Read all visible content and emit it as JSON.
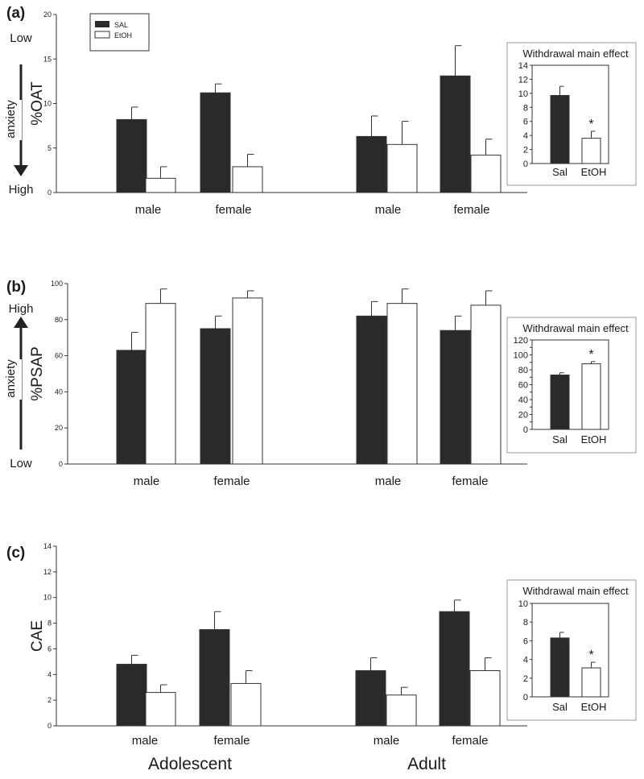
{
  "colors": {
    "sal": "#2a2a2a",
    "etoh": "#ffffff",
    "axis": "#333333"
  },
  "legend": {
    "sal_label": "SAL",
    "etoh_label": "EtOH"
  },
  "age_groups": [
    "Adolescent",
    "Adult"
  ],
  "chart_data": [
    {
      "type": "bar",
      "panel": "(a)",
      "ylabel": "%OAT",
      "ylim": [
        0,
        20
      ],
      "yticks": [
        0,
        5,
        10,
        15,
        20
      ],
      "arrow": {
        "direction": "down",
        "top_label": "Low",
        "bottom_label": "High",
        "text": "anxiety"
      },
      "groups": [
        "Adolescent",
        "Adult"
      ],
      "categories": [
        "male",
        "female",
        "male",
        "female"
      ],
      "series": [
        {
          "name": "SAL",
          "values": [
            8.2,
            11.2,
            6.3,
            13.1
          ],
          "errors": [
            1.4,
            1.0,
            2.3,
            3.4
          ]
        },
        {
          "name": "EtOH",
          "values": [
            1.6,
            2.9,
            5.4,
            4.2
          ],
          "errors": [
            1.3,
            1.4,
            2.6,
            1.8
          ]
        }
      ],
      "inset": {
        "title": "Withdrawal main effect",
        "categories": [
          "Sal",
          "EtOH"
        ],
        "values": [
          9.7,
          3.6
        ],
        "errors": [
          1.3,
          1.0
        ],
        "ylim": [
          0,
          14
        ],
        "yticks": [
          0,
          2,
          4,
          6,
          8,
          10,
          12,
          14
        ],
        "significance": "*"
      }
    },
    {
      "type": "bar",
      "panel": "(b)",
      "ylabel": "%PSAP",
      "ylim": [
        0,
        100
      ],
      "yticks": [
        0,
        20,
        40,
        60,
        80,
        100
      ],
      "arrow": {
        "direction": "up",
        "top_label": "High",
        "bottom_label": "Low",
        "text": "anxiety"
      },
      "groups": [
        "Adolescent",
        "Adult"
      ],
      "categories": [
        "male",
        "female",
        "male",
        "female"
      ],
      "series": [
        {
          "name": "SAL",
          "values": [
            63,
            75,
            82,
            74
          ],
          "errors": [
            10,
            7,
            8,
            8
          ]
        },
        {
          "name": "EtOH",
          "values": [
            89,
            92,
            89,
            88
          ],
          "errors": [
            8,
            4,
            8,
            8
          ]
        }
      ],
      "inset": {
        "title": "Withdrawal main effect",
        "categories": [
          "Sal",
          "EtOH"
        ],
        "values": [
          73,
          88
        ],
        "errors": [
          3,
          3
        ],
        "ylim": [
          0,
          120
        ],
        "yticks": [
          0,
          10,
          20,
          30,
          40,
          50,
          60,
          70,
          80,
          90,
          100,
          110,
          120
        ],
        "ytick_labels": [
          "0",
          "",
          "20",
          "",
          "40",
          "",
          "60",
          "",
          "80",
          "",
          "100",
          "",
          "120"
        ],
        "significance": "*"
      }
    },
    {
      "type": "bar",
      "panel": "(c)",
      "ylabel": "CAE",
      "ylim": [
        0,
        14
      ],
      "yticks": [
        0,
        2,
        4,
        6,
        8,
        10,
        12,
        14
      ],
      "groups": [
        "Adolescent",
        "Adult"
      ],
      "categories": [
        "male",
        "female",
        "male",
        "female"
      ],
      "series": [
        {
          "name": "SAL",
          "values": [
            4.8,
            7.5,
            4.3,
            8.9
          ],
          "errors": [
            0.7,
            1.4,
            1.0,
            0.9
          ]
        },
        {
          "name": "EtOH",
          "values": [
            2.6,
            3.3,
            2.4,
            4.3
          ],
          "errors": [
            0.6,
            1.0,
            0.6,
            1.0
          ]
        }
      ],
      "inset": {
        "title": "Withdrawal main effect",
        "categories": [
          "Sal",
          "EtOH"
        ],
        "values": [
          6.3,
          3.1
        ],
        "errors": [
          0.6,
          0.6
        ],
        "ylim": [
          0,
          10
        ],
        "yticks": [
          0,
          2,
          4,
          6,
          8,
          10
        ],
        "significance": "*"
      }
    }
  ]
}
